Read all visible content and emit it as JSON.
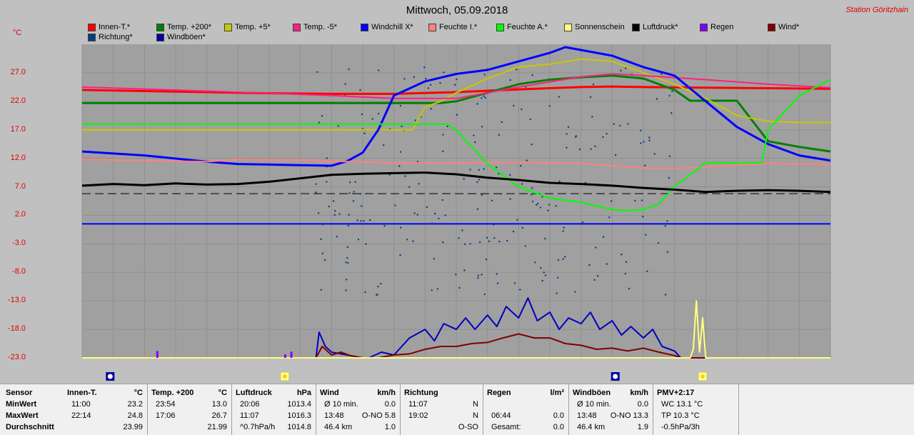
{
  "title": "Mittwoch, 05.09.2018",
  "station": "Station Göritzhain",
  "y_unit": "°C",
  "legend": [
    {
      "label": "Innen-T.*",
      "color": "#ff0000"
    },
    {
      "label": "Temp. +200*",
      "color": "#008000"
    },
    {
      "label": "Temp. +5*",
      "color": "#c8c800"
    },
    {
      "label": "Temp. -5*",
      "color": "#ff2080"
    },
    {
      "label": "Windchill X*",
      "color": "#0000ff"
    },
    {
      "label": "Feuchte I.*",
      "color": "#ff8080"
    },
    {
      "label": "Feuchte A.*",
      "color": "#00ff00"
    },
    {
      "label": "Sonnenschein",
      "color": "#ffff80"
    },
    {
      "label": "Luftdruck*",
      "color": "#000000"
    },
    {
      "label": "Regen",
      "color": "#8000ff"
    },
    {
      "label": "Wind*",
      "color": "#800000"
    },
    {
      "label": "Richtung*",
      "color": "#004080"
    },
    {
      "label": "Windböen*",
      "color": "#0000a0"
    }
  ],
  "chart_data": {
    "type": "line",
    "title": "Mittwoch, 05.09.2018",
    "ylabel": "°C",
    "ylim": [
      -23.0,
      32.0
    ],
    "yticks": [
      "27.0",
      "22.0",
      "17.0",
      "12.0",
      "7.0",
      "2.0",
      "-3.0",
      "-8.0",
      "-13.0",
      "-18.0",
      "-23.0"
    ],
    "xlim": [
      0,
      24
    ],
    "grid": true,
    "legend_position": "top",
    "series": [
      {
        "name": "Innen-T.*",
        "color": "#ff0000",
        "width": 3,
        "x": [
          0,
          2,
          4,
          6,
          8,
          10,
          12,
          14,
          16,
          17,
          18,
          20,
          22,
          24
        ],
        "y": [
          24,
          23.8,
          23.6,
          23.4,
          23.3,
          23.3,
          23.6,
          24.1,
          24.5,
          24.6,
          24.5,
          24.4,
          24.3,
          24.2
        ]
      },
      {
        "name": "Temp. +200*",
        "color": "#008000",
        "width": 3,
        "x": [
          0,
          8,
          11.5,
          12,
          13,
          14,
          15,
          16,
          17,
          18,
          19,
          19.5,
          20,
          21,
          22,
          23,
          24
        ],
        "y": [
          21.7,
          21.7,
          21.7,
          22,
          23.5,
          25,
          25.8,
          26.2,
          26.5,
          26,
          24,
          22.1,
          22.1,
          22.1,
          15,
          14,
          13.2
        ]
      },
      {
        "name": "Temp. +5*",
        "color": "#c8c800",
        "width": 2,
        "x": [
          0,
          5,
          9,
          10.6,
          11,
          11.5,
          12,
          13,
          14,
          15,
          16,
          17,
          17.5,
          18,
          19,
          20,
          21,
          22,
          23,
          24
        ],
        "y": [
          17,
          17,
          17,
          17,
          21,
          22,
          23.5,
          26,
          28,
          28.5,
          29.4,
          29,
          28,
          27,
          25,
          22.5,
          19.5,
          18.5,
          18.3,
          18.3
        ]
      },
      {
        "name": "Temp. -5*",
        "color": "#ff2080",
        "width": 2,
        "x": [
          0,
          4,
          8,
          10,
          12,
          14,
          16,
          17,
          18,
          20,
          22,
          24
        ],
        "y": [
          24.5,
          23.8,
          23,
          22.5,
          22.5,
          24.5,
          26.3,
          26.8,
          26.5,
          25.8,
          25,
          24.4
        ]
      },
      {
        "name": "Windchill X*",
        "color": "#0000ff",
        "width": 3,
        "x": [
          0,
          2,
          4,
          5,
          6,
          7,
          8,
          8.5,
          9,
          9.5,
          10,
          11,
          12,
          13,
          14,
          15,
          15.5,
          16,
          17,
          18,
          19,
          20,
          21,
          22,
          23,
          24
        ],
        "y": [
          13.2,
          12.5,
          11.4,
          11,
          10.9,
          10.8,
          10.7,
          11.5,
          13,
          17,
          23,
          25.5,
          26.8,
          27.5,
          29,
          30.5,
          31.5,
          31,
          30,
          28,
          26.5,
          22,
          17.5,
          14.5,
          12.5,
          11.6
        ]
      },
      {
        "name": "Feuchte I.*",
        "color": "#ff8080",
        "width": 2,
        "x": [
          0,
          2,
          4,
          5,
          6,
          7,
          8,
          10,
          12,
          14,
          15,
          16,
          17,
          18,
          19,
          20,
          21,
          22,
          23,
          24
        ],
        "y": [
          11.8,
          11.6,
          11.4,
          11.8,
          11.7,
          11.7,
          11.5,
          11.2,
          11.2,
          11.3,
          11.2,
          11.1,
          10.7,
          10.3,
          10.2,
          10.5,
          10.8,
          11.1,
          11,
          10.9
        ]
      },
      {
        "name": "Feuchte A.*",
        "color": "#00ff00",
        "width": 2,
        "x": [
          0,
          4,
          8,
          10,
          11,
          11.7,
          12,
          12.5,
          13,
          13.5,
          14,
          15,
          16,
          17,
          17.5,
          18,
          18.5,
          19,
          20,
          21,
          21.8,
          22,
          22.5,
          23,
          24
        ],
        "y": [
          18,
          18,
          18,
          18,
          18,
          18,
          17,
          14,
          11,
          9,
          7,
          5,
          4.3,
          3,
          2.8,
          3,
          4,
          7,
          11.2,
          11.2,
          11.2,
          17,
          20,
          23,
          25.8
        ]
      },
      {
        "name": "Luftdruck*",
        "color": "#000000",
        "width": 3,
        "x": [
          0,
          1,
          2,
          3,
          4,
          5,
          6,
          7,
          8,
          9,
          10,
          11,
          12,
          13,
          14,
          15,
          16,
          17,
          18,
          19,
          20,
          21,
          22,
          23,
          24
        ],
        "y": [
          7.2,
          7.5,
          7.3,
          7.6,
          7.4,
          7.5,
          7.9,
          8.5,
          9.1,
          9.3,
          9.4,
          9.5,
          9.2,
          8.6,
          8.2,
          7.7,
          7.5,
          7.2,
          6.8,
          6.5,
          6.1,
          6.3,
          6.4,
          6.3,
          6.1
        ]
      },
      {
        "name": "Windböen*",
        "color": "#0000c0",
        "width": 2,
        "x": [
          0,
          7.5,
          7.6,
          7.8,
          8,
          8.3,
          8.6,
          9,
          9.2,
          9.6,
          10,
          10.5,
          11,
          11.3,
          11.6,
          12,
          12.3,
          12.6,
          13,
          13.3,
          13.6,
          14,
          14.3,
          14.6,
          15,
          15.3,
          15.6,
          16,
          16.3,
          16.6,
          17,
          17.3,
          17.6,
          18,
          18.3,
          18.6,
          19,
          19.2,
          24
        ],
        "y": [
          -23,
          -23,
          -18.5,
          -21,
          -22,
          -22.3,
          -22.6,
          -23,
          -23,
          -22,
          -22.5,
          -19.5,
          -18,
          -20,
          -17,
          -18,
          -16,
          -18,
          -15.5,
          -17.5,
          -14,
          -16,
          -12.5,
          -16.5,
          -15,
          -18,
          -16,
          -17,
          -15,
          -18,
          -16.5,
          -19,
          -17.5,
          -19.5,
          -18,
          -21,
          -21.8,
          -23,
          -23
        ]
      },
      {
        "name": "Wind*",
        "color": "#800000",
        "width": 2,
        "x": [
          0,
          7.5,
          7.7,
          8,
          8.3,
          8.6,
          9,
          9.5,
          10,
          10.5,
          11,
          11.5,
          12,
          12.5,
          13,
          13.5,
          14,
          14.5,
          15,
          15.5,
          16,
          16.5,
          17,
          17.5,
          18,
          18.5,
          19,
          19.2,
          24
        ],
        "y": [
          -23,
          -23,
          -21,
          -22.5,
          -22,
          -22.6,
          -23,
          -23,
          -22.5,
          -22.3,
          -21.5,
          -21,
          -21,
          -20.5,
          -20.3,
          -19.5,
          -18.8,
          -19.5,
          -19.5,
          -20.5,
          -20.8,
          -21.5,
          -21.3,
          -21.8,
          -21.3,
          -22,
          -22.6,
          -23,
          -23
        ]
      },
      {
        "name": "Sonnenschein",
        "color": "#ffff80",
        "width": 2,
        "x": [
          0,
          19.5,
          19.6,
          19.7,
          19.8,
          19.9,
          20,
          24
        ],
        "y": [
          -23,
          -23,
          -21.5,
          -13,
          -22,
          -16,
          -23,
          -23
        ]
      }
    ],
    "rain_bars": [
      {
        "x": 2.4,
        "h": 1.2
      },
      {
        "x": 6.5,
        "h": 0.6
      },
      {
        "x": 6.7,
        "h": 1.1
      }
    ],
    "dashed_reference": 5.8,
    "direction_scatter_note": "Richtung* shown as scattered dots"
  },
  "day_markers": [
    {
      "x": 0.9,
      "type": "moon"
    },
    {
      "x": 6.5,
      "type": "sun"
    },
    {
      "x": 17.1,
      "type": "moon"
    },
    {
      "x": 19.9,
      "type": "sun"
    }
  ],
  "table": {
    "rows": [
      "Sensor",
      "MinWert",
      "MaxWert",
      "Durchschnitt"
    ],
    "cols": [
      {
        "h1": "Innen-T.",
        "h2": "°C",
        "r1a": "11:00",
        "r1b": "23.2",
        "r2a": "22:14",
        "r2b": "24.8",
        "r3a": "",
        "r3b": "23.99"
      },
      {
        "h1": "Temp. +200",
        "h2": "°C",
        "r1a": "23:54",
        "r1b": "13.0",
        "r2a": "17:06",
        "r2b": "26.7",
        "r3a": "",
        "r3b": "21.99"
      },
      {
        "h1": "Luftdruck",
        "h2": "hPa",
        "r1a": "20:06",
        "r1b": "1013.4",
        "r2a": "11:07",
        "r2b": "1016.3",
        "r3a": "^0.7hPa/h",
        "r3b": "1014.8"
      },
      {
        "h1": "Wind",
        "h2": "km/h",
        "r1a": "Ø 10 min.",
        "r1b": "0.0",
        "r2a": "13:48",
        "r2b": "O-NO 5.8",
        "r3a": "46.4 km",
        "r3b": "1.0"
      },
      {
        "h1": "Richtung",
        "h2": "",
        "r1a": "11:07",
        "r1b": "N",
        "r2a": "19:02",
        "r2b": "N",
        "r3a": "",
        "r3b": "O-SO"
      },
      {
        "h1": "Regen",
        "h2": "l/m²",
        "r1a": "",
        "r1b": "",
        "r2a": "06:44",
        "r2b": "0.0",
        "r3a": "Gesamt:",
        "r3b": "0.0"
      },
      {
        "h1": "Windböen",
        "h2": "km/h",
        "r1a": "Ø 10 min.",
        "r1b": "0.0",
        "r2a": "13:48",
        "r2b": "O-NO 13.3",
        "r3a": "46.4 km",
        "r3b": "1.9"
      },
      {
        "h1": "PMV+2:17",
        "h2": "",
        "r1a": "WC 13.1 °C",
        "r1b": "",
        "r2a": "TP 10.3 °C",
        "r2b": "",
        "r3a": "-0.5hPa/3h",
        "r3b": ""
      }
    ]
  }
}
